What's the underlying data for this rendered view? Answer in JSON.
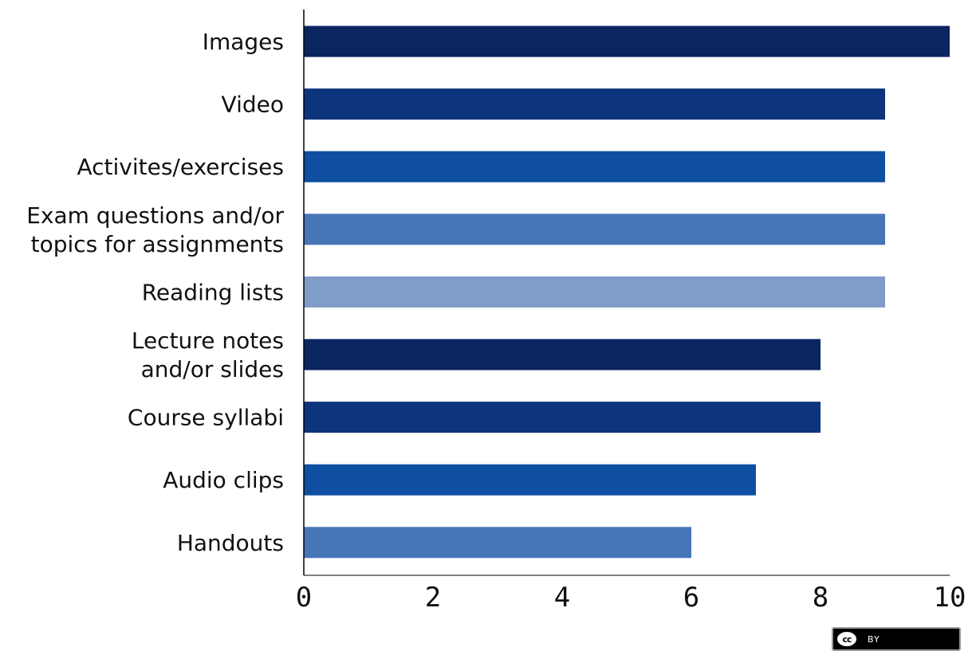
{
  "chart_data": {
    "type": "bar",
    "orientation": "horizontal",
    "categories": [
      [
        "Images"
      ],
      [
        "Video"
      ],
      [
        "Activites/exercises"
      ],
      [
        "Exam questions and/or",
        "topics for assignments"
      ],
      [
        "Reading lists"
      ],
      [
        "Lecture notes",
        "and/or slides"
      ],
      [
        "Course syllabi"
      ],
      [
        "Audio clips"
      ],
      [
        "Handouts"
      ]
    ],
    "values": [
      10,
      9,
      9,
      9,
      9,
      8,
      8,
      7,
      6
    ],
    "colors": [
      "#0b2561",
      "#0d347c",
      "#0e4fa2",
      "#4676b7",
      "#809dca",
      "#0b2561",
      "#0d347c",
      "#0e4fa2",
      "#4676b7"
    ],
    "xlim": [
      0,
      10
    ],
    "xticks": [
      0,
      2,
      4,
      6,
      8,
      10
    ],
    "grid": false,
    "title": "",
    "xlabel": "",
    "ylabel": ""
  },
  "license_badge": {
    "icon": "cc-icon",
    "symbol": "cc",
    "label": "BY"
  }
}
